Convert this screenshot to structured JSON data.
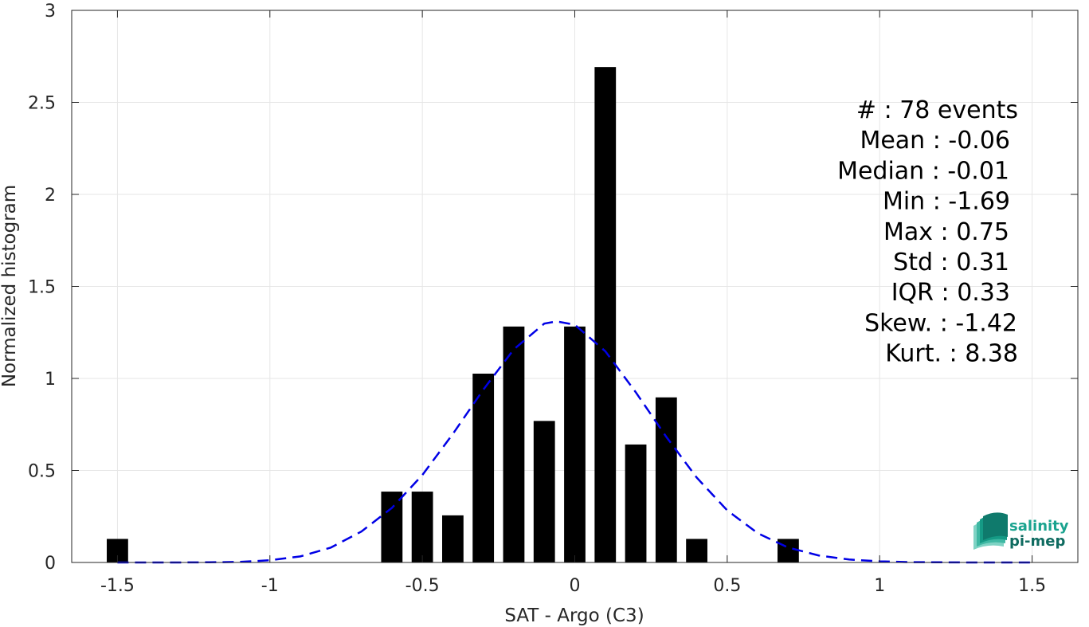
{
  "chart_data": {
    "type": "bar",
    "xlabel": "SAT - Argo (C3)",
    "ylabel": "Normalized histogram",
    "xlim": [
      -1.65,
      1.65
    ],
    "ylim": [
      0,
      3
    ],
    "x_ticks": [
      -1.5,
      -1,
      -0.5,
      0,
      0.5,
      1,
      1.5
    ],
    "x_tick_labels": [
      "-1.5",
      "-1",
      "-0.5",
      "0",
      "0.5",
      "1",
      "1.5"
    ],
    "y_ticks": [
      0,
      0.5,
      1,
      1.5,
      2,
      2.5,
      3
    ],
    "y_tick_labels": [
      "0",
      "0.5",
      "1",
      "1.5",
      "2",
      "2.5",
      "3"
    ],
    "grid": true,
    "bar_width": 0.07,
    "bars": [
      {
        "x": -1.5,
        "value": 0.128
      },
      {
        "x": -0.6,
        "value": 0.385
      },
      {
        "x": -0.5,
        "value": 0.385
      },
      {
        "x": -0.4,
        "value": 0.256
      },
      {
        "x": -0.3,
        "value": 1.026
      },
      {
        "x": -0.2,
        "value": 1.282
      },
      {
        "x": -0.1,
        "value": 0.769
      },
      {
        "x": 0.0,
        "value": 1.282
      },
      {
        "x": 0.1,
        "value": 2.692
      },
      {
        "x": 0.2,
        "value": 0.641
      },
      {
        "x": 0.3,
        "value": 0.897
      },
      {
        "x": 0.4,
        "value": 0.128
      },
      {
        "x": 0.7,
        "value": 0.128
      }
    ],
    "fit_curve": {
      "style": "dashed",
      "mean": -0.06,
      "std": 0.31,
      "x": [
        -1.5,
        -1.4,
        -1.3,
        -1.2,
        -1.1,
        -1.0,
        -0.9,
        -0.8,
        -0.7,
        -0.6,
        -0.5,
        -0.4,
        -0.3,
        -0.2,
        -0.1,
        -0.06,
        0.0,
        0.1,
        0.2,
        0.3,
        0.4,
        0.5,
        0.6,
        0.7,
        0.8,
        0.9,
        1.0,
        1.1,
        1.2,
        1.3,
        1.4,
        1.5
      ],
      "y": [
        0.0,
        0.0,
        0.0,
        0.001,
        0.003,
        0.012,
        0.033,
        0.081,
        0.168,
        0.296,
        0.475,
        0.698,
        0.939,
        1.158,
        1.298,
        1.31,
        1.292,
        1.148,
        0.925,
        0.683,
        0.461,
        0.283,
        0.159,
        0.081,
        0.038,
        0.016,
        0.006,
        0.002,
        0.001,
        0.0,
        0.0,
        0.0
      ]
    },
    "stats": [
      "#  : 78 events",
      "Mean : -0.06",
      "Median : -0.01",
      "Min : -1.69",
      "Max : 0.75",
      "Std : 0.31",
      "IQR : 0.33",
      "Skew. : -1.42",
      "Kurt. : 8.38"
    ]
  },
  "logo": {
    "line1": "salinity",
    "line2": "pi-mep"
  },
  "colors": {
    "bar": "#000000",
    "fit_curve": "#0000e6",
    "grid": "#e6e6e6",
    "axis": "#262626",
    "logo_primary": "#1aa38f",
    "logo_secondary": "#0f6b60"
  }
}
